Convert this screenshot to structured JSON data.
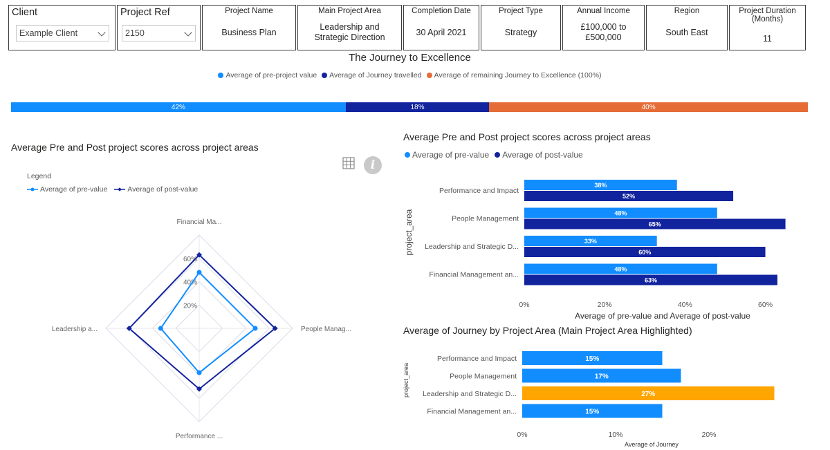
{
  "header": {
    "client": {
      "title": "Client",
      "value": "Example Client"
    },
    "project_ref": {
      "title": "Project Ref",
      "value": "2150"
    },
    "cards": [
      {
        "title": "Project Name",
        "value": "Business Plan"
      },
      {
        "title": "Main Project Area",
        "value": "Leadership and Strategic Direction"
      },
      {
        "title": "Completion Date",
        "value": "30 April 2021"
      },
      {
        "title": "Project Type",
        "value": "Strategy"
      },
      {
        "title": "Annual Income",
        "value": "£100,000 to £500,000"
      },
      {
        "title": "Region",
        "value": "South East"
      },
      {
        "title": "Project Duration (Months)",
        "value": "11"
      }
    ]
  },
  "journey": {
    "title": "The Journey to Excellence",
    "legend": [
      {
        "label": "Average of pre-project value",
        "color": "#118DFF"
      },
      {
        "label": "Average of Journey travelled",
        "color": "#12239E"
      },
      {
        "label": "Average of remaining Journey to Excellence (100%)",
        "color": "#E66C37"
      }
    ]
  },
  "radar": {
    "title": "Average Pre and Post project scores across project areas",
    "legend_title": "Legend",
    "legend": [
      {
        "label": "Average of pre-value",
        "color": "#118DFF"
      },
      {
        "label": "Average of post-value",
        "color": "#12239E"
      }
    ],
    "icons": {
      "table": "table-grid-icon",
      "info": "info-icon",
      "info_glyph": "i"
    }
  },
  "bars": {
    "title": "Average Pre and Post project scores across project areas",
    "legend": [
      {
        "label": "Average of pre-value",
        "color": "#118DFF"
      },
      {
        "label": "Average of post-value",
        "color": "#12239E"
      }
    ]
  },
  "journey_bars": {
    "title": "Average of Journey by Project Area (Main Project Area Highlighted)"
  },
  "chart_data": [
    {
      "type": "bar",
      "orientation": "horizontal-stacked",
      "series": [
        {
          "name": "Average of pre-project value",
          "values": [
            42
          ],
          "label": "42%",
          "color": "#118DFF"
        },
        {
          "name": "Average of Journey travelled",
          "values": [
            18
          ],
          "label": "18%",
          "color": "#12239E"
        },
        {
          "name": "Average of remaining Journey to Excellence (100%)",
          "values": [
            40
          ],
          "label": "40%",
          "color": "#E66C37"
        }
      ],
      "xlim": [
        0,
        100
      ]
    },
    {
      "type": "radar",
      "axes": [
        "Financial Ma...",
        "People Manag...",
        "Performance ...",
        "Leadership a..."
      ],
      "ticks": [
        "20%",
        "40%",
        "60%"
      ],
      "rmax": 80,
      "series": [
        {
          "name": "Average of pre-value",
          "values": [
            48,
            48,
            38,
            33
          ],
          "color": "#118DFF"
        },
        {
          "name": "Average of post-value",
          "values": [
            63,
            65,
            52,
            60
          ],
          "color": "#12239E"
        }
      ]
    },
    {
      "type": "bar",
      "orientation": "horizontal",
      "categories": [
        "Performance and Impact",
        "People Management",
        "Leadership and Strategic D...",
        "Financial Management an..."
      ],
      "series": [
        {
          "name": "Average of pre-value",
          "values": [
            38,
            48,
            33,
            48
          ],
          "labels": [
            "38%",
            "48%",
            "33%",
            "48%"
          ],
          "color": "#118DFF"
        },
        {
          "name": "Average of post-value",
          "values": [
            52,
            65,
            60,
            63
          ],
          "labels": [
            "52%",
            "65%",
            "60%",
            "63%"
          ],
          "color": "#12239E"
        }
      ],
      "xticks": [
        "0%",
        "20%",
        "40%",
        "60%"
      ],
      "xlim": [
        0,
        68
      ],
      "xlabel": "Average of pre-value and Average of post-value",
      "ylabel": "project_area"
    },
    {
      "type": "bar",
      "orientation": "horizontal",
      "categories": [
        "Performance and Impact",
        "People Management",
        "Leadership and Strategic D...",
        "Financial Management an..."
      ],
      "values": [
        15,
        17,
        27,
        15
      ],
      "labels": [
        "15%",
        "17%",
        "27%",
        "15%"
      ],
      "colors": [
        "#118DFF",
        "#118DFF",
        "#FFA500",
        "#118DFF"
      ],
      "xticks": [
        "0%",
        "10%",
        "20%"
      ],
      "xlim": [
        0,
        28
      ],
      "xlabel": "Average of Journey",
      "ylabel": "project_area"
    }
  ]
}
